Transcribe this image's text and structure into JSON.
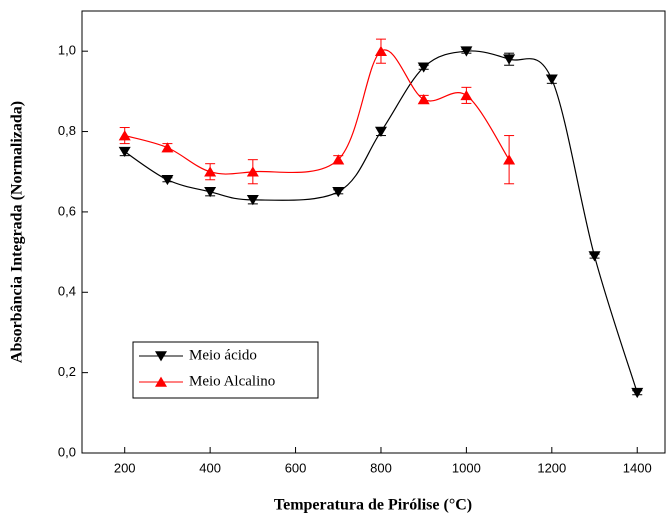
{
  "chart_data": {
    "type": "scatter",
    "x_label": "Temperatura de Pirólise (°C)",
    "y_label": "Absorbância Integrada (Normalizada)",
    "x": [
      200,
      300,
      400,
      500,
      700,
      800,
      900,
      1000,
      1100,
      1200,
      1300,
      1400
    ],
    "series": [
      {
        "name": "Meio ácido",
        "color": "#000000",
        "marker": "triangle-down",
        "values": [
          0.75,
          0.68,
          0.65,
          0.63,
          0.65,
          0.8,
          0.96,
          1.0,
          0.98,
          0.93,
          0.49,
          0.15
        ],
        "errors": [
          0.01,
          0.005,
          0.01,
          0.01,
          0.005,
          0.01,
          0.005,
          0.005,
          0.015,
          0.01,
          0.005,
          0.005
        ]
      },
      {
        "name": "Meio Alcalino",
        "color": "#ff0000",
        "marker": "triangle-up",
        "values": [
          0.79,
          0.76,
          0.7,
          0.7,
          0.73,
          1.0,
          0.88,
          0.89,
          0.73,
          null,
          null,
          null
        ],
        "errors": [
          0.02,
          0.01,
          0.02,
          0.03,
          0.01,
          0.03,
          0.01,
          0.02,
          0.06,
          null,
          null,
          null
        ]
      }
    ],
    "xlim": [
      100,
      1465
    ],
    "ylim": [
      0,
      1.1
    ],
    "xticks": [
      200,
      400,
      600,
      800,
      1000,
      1200,
      1400
    ],
    "yticks": [
      {
        "value": 0,
        "label": "0,0"
      },
      {
        "value": 0.2,
        "label": "0,2"
      },
      {
        "value": 0.4,
        "label": "0,4"
      },
      {
        "value": 0.6,
        "label": "0,6"
      },
      {
        "value": 0.8,
        "label": "0,8"
      },
      {
        "value": 1.0,
        "label": "1,0"
      }
    ],
    "smooth_curve": true,
    "legend": "lower left"
  }
}
